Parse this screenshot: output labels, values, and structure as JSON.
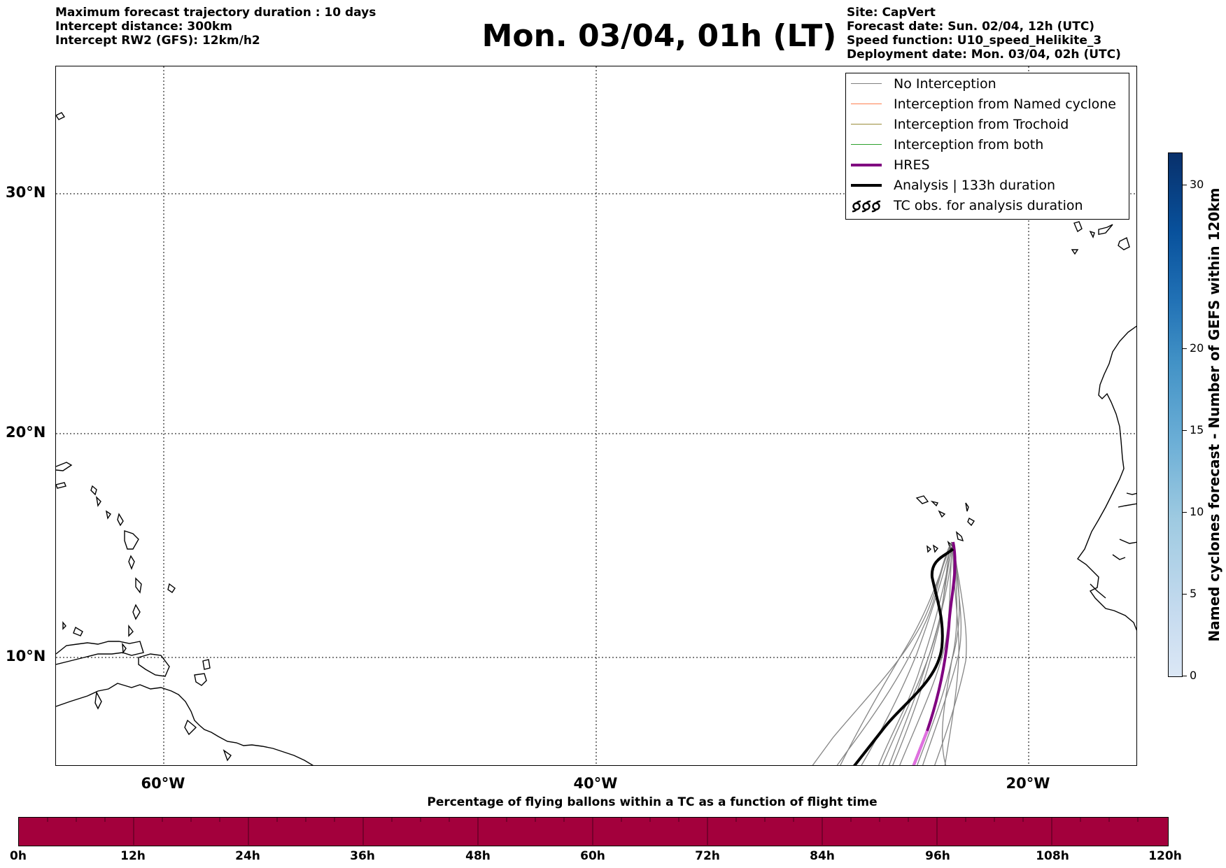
{
  "header": {
    "left_lines": [
      "Maximum forecast trajectory duration : 10 days",
      "Intercept distance: 300km",
      "Intercept RW2 (GFS):  12km/h2"
    ],
    "title": "Mon. 03/04, 01h (LT)",
    "right_lines": [
      "Site: CapVert",
      "Forecast date: Sun. 02/04, 12h (UTC)",
      "Speed function: U10_speed_Helikite_3",
      "Deployment date: Mon. 03/04, 02h (UTC)"
    ]
  },
  "map": {
    "lat_labels": [
      "30°N",
      "20°N",
      "10°N"
    ],
    "lon_labels": [
      "60°W",
      "40°W",
      "20°W"
    ],
    "grid": true
  },
  "legend": {
    "items": [
      {
        "label": "No Interception",
        "color": "#808080"
      },
      {
        "label": "Interception from Named cyclone",
        "color": "#ff7f50"
      },
      {
        "label": "Interception from Trochoid",
        "color": "#9a8c3a"
      },
      {
        "label": "Interception from both",
        "color": "#2ca02c"
      },
      {
        "label": "HRES",
        "color": "#800080"
      },
      {
        "label": "Analysis | 133h duration",
        "color": "#000000"
      },
      {
        "label": "TC obs. for analysis duration",
        "icon": "cyclone-symbols-icon"
      }
    ]
  },
  "colorbar_vertical": {
    "label": "Named cyclones forecast - Number of GEFS within 120km",
    "ticks": [
      "0",
      "5",
      "10",
      "15",
      "20",
      "30"
    ],
    "min": 0,
    "max": 32
  },
  "colorbar_horizontal": {
    "title": "Percentage of flying ballons within a TC as a function of flight time",
    "ticks": [
      "0h",
      "12h",
      "24h",
      "36h",
      "48h",
      "60h",
      "72h",
      "84h",
      "96h",
      "108h",
      "120h"
    ],
    "fill_color": "#a3003c"
  }
}
